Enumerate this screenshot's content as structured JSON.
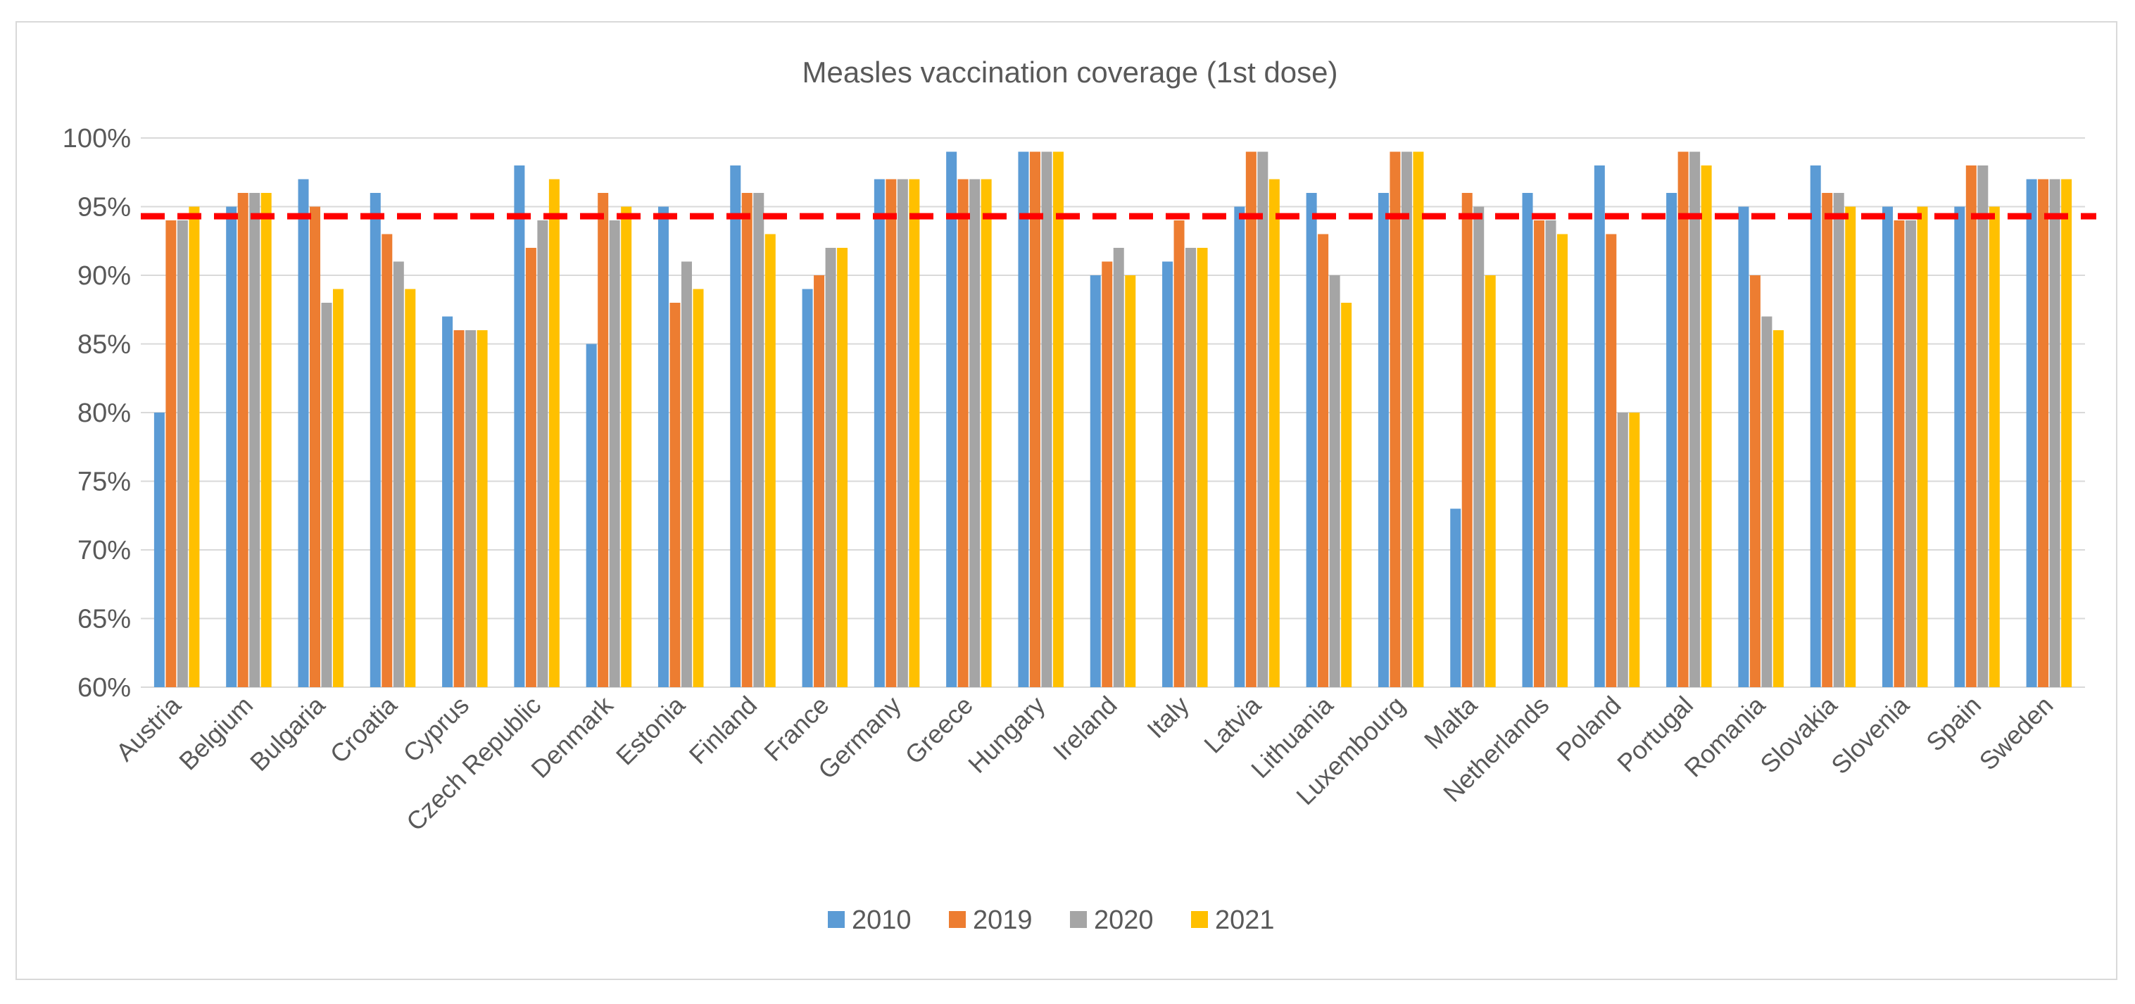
{
  "chart_data": {
    "type": "bar",
    "title": "Measles vaccination coverage (1st dose)",
    "xlabel": "",
    "ylabel": "",
    "ylim": [
      60,
      100
    ],
    "yticks": [
      "60%",
      "65%",
      "70%",
      "75%",
      "80%",
      "85%",
      "90%",
      "95%",
      "100%"
    ],
    "ytick_values": [
      60,
      65,
      70,
      75,
      80,
      85,
      90,
      95,
      100
    ],
    "reference_line": {
      "value": 94.3,
      "color": "#ff0000",
      "style": "dashed"
    },
    "legend_position": "bottom",
    "categories": [
      "Austria",
      "Belgium",
      "Bulgaria",
      "Croatia",
      "Cyprus",
      "Czech Republic",
      "Denmark",
      "Estonia",
      "Finland",
      "France",
      "Germany",
      "Greece",
      "Hungary",
      "Ireland",
      "Italy",
      "Latvia",
      "Lithuania",
      "Luxembourg",
      "Malta",
      "Netherlands",
      "Poland",
      "Portugal",
      "Romania",
      "Slovakia",
      "Slovenia",
      "Spain",
      "Sweden"
    ],
    "series": [
      {
        "name": "2010",
        "color": "#5b9bd5",
        "values": [
          80,
          95,
          97,
          96,
          87,
          98,
          85,
          95,
          98,
          89,
          97,
          99,
          99,
          90,
          91,
          95,
          96,
          96,
          73,
          96,
          98,
          96,
          95,
          98,
          95,
          95,
          97
        ]
      },
      {
        "name": "2019",
        "color": "#ed7d31",
        "values": [
          94,
          96,
          95,
          93,
          86,
          92,
          96,
          88,
          96,
          90,
          97,
          97,
          99,
          91,
          94,
          99,
          93,
          99,
          96,
          94,
          93,
          99,
          90,
          96,
          94,
          98,
          97
        ]
      },
      {
        "name": "2020",
        "color": "#a5a5a5",
        "values": [
          94,
          96,
          88,
          91,
          86,
          94,
          94,
          91,
          96,
          92,
          97,
          97,
          99,
          92,
          92,
          99,
          90,
          99,
          95,
          94,
          80,
          99,
          87,
          96,
          94,
          98,
          97
        ]
      },
      {
        "name": "2021",
        "color": "#ffc000",
        "values": [
          95,
          96,
          89,
          89,
          86,
          97,
          95,
          89,
          93,
          92,
          97,
          97,
          99,
          90,
          92,
          97,
          88,
          99,
          90,
          93,
          80,
          98,
          86,
          95,
          95,
          95,
          97
        ]
      }
    ]
  }
}
